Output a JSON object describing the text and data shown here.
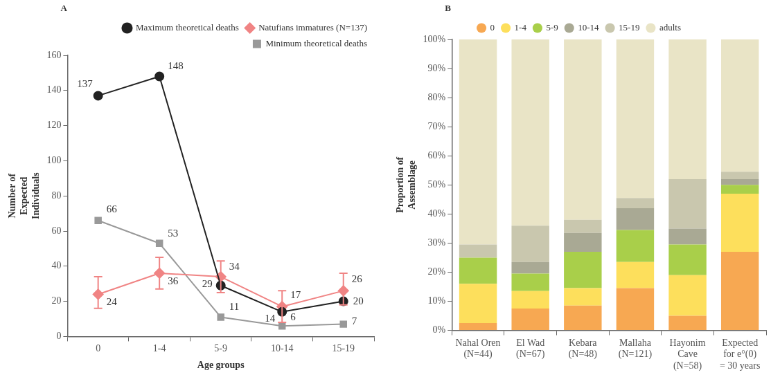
{
  "chart_data": [
    {
      "type": "line",
      "title": "A",
      "xlabel": "Age groups",
      "ylabel": "Number of\nExpected\nIndividuals",
      "categories": [
        "0",
        "1-4",
        "5-9",
        "10-14",
        "15-19"
      ],
      "series": [
        {
          "name": "Maximum theoretical deaths",
          "color": "#222222",
          "marker": "circle",
          "values": [
            137,
            148,
            29,
            14,
            20
          ]
        },
        {
          "name": "Natufians immatures (N=137)",
          "color": "#f08484",
          "marker": "diamond",
          "values": [
            24,
            36,
            34,
            17,
            26
          ],
          "errors": [
            [
              16,
              34
            ],
            [
              27,
              45
            ],
            [
              25,
              43
            ],
            [
              8,
              26
            ],
            [
              18,
              36
            ]
          ]
        },
        {
          "name": "Minimum theoretical deaths",
          "color": "#999999",
          "marker": "square",
          "values": [
            66,
            53,
            11,
            6,
            7
          ]
        }
      ],
      "ylim": [
        0,
        160
      ],
      "yticks": [
        0,
        20,
        40,
        60,
        80,
        100,
        120,
        140,
        160
      ],
      "grid": false,
      "legend": "top right",
      "data_labels": true,
      "line_style": "solid"
    },
    {
      "type": "bar",
      "title": "B",
      "ylabel": "Proportion of\nAssemblage",
      "stacked": true,
      "categories": [
        "Nahal Oren\n(N=44)",
        "El Wad\n(N=67)",
        "Kebara\n(N=48)",
        "Mallaha\n(N=121)",
        "Hayonim\nCave\n(N=58)",
        "Expected\nfor e°(0)\n= 30 years"
      ],
      "series": [
        {
          "name": "0",
          "color": "#f7a852",
          "values": [
            2.5,
            7.5,
            8.5,
            14.5,
            5,
            27
          ]
        },
        {
          "name": "1-4",
          "color": "#fddf5c",
          "values": [
            13.5,
            6,
            6,
            9,
            14,
            20
          ]
        },
        {
          "name": "5-9",
          "color": "#a9cf4a",
          "values": [
            9,
            6,
            12.5,
            11,
            10.5,
            3
          ]
        },
        {
          "name": "10-14",
          "color": "#a9a994",
          "values": [
            0,
            4,
            6.5,
            7.5,
            5.5,
            2
          ]
        },
        {
          "name": "15-19",
          "color": "#c9c7ae",
          "values": [
            4.5,
            12.5,
            4.5,
            3.5,
            17,
            2.5
          ]
        },
        {
          "name": "adults",
          "color": "#e9e4c6",
          "values": [
            70.5,
            64,
            62,
            54.5,
            48,
            45.5
          ]
        }
      ],
      "ylim": [
        0,
        100
      ],
      "yticks": [
        {
          "value": 0,
          "label": "0%"
        },
        {
          "value": 10,
          "label": "10%"
        },
        {
          "value": 20,
          "label": "20%"
        },
        {
          "value": 30,
          "label": "30%"
        },
        {
          "value": 40,
          "label": "40%"
        },
        {
          "value": 50,
          "label": "50%"
        },
        {
          "value": 60,
          "label": "60%"
        },
        {
          "value": 70,
          "label": "70%"
        },
        {
          "value": 80,
          "label": "80%"
        },
        {
          "value": 90,
          "label": "90%"
        },
        {
          "value": 100,
          "label": "100%"
        }
      ],
      "grid": false,
      "legend": "top"
    }
  ]
}
